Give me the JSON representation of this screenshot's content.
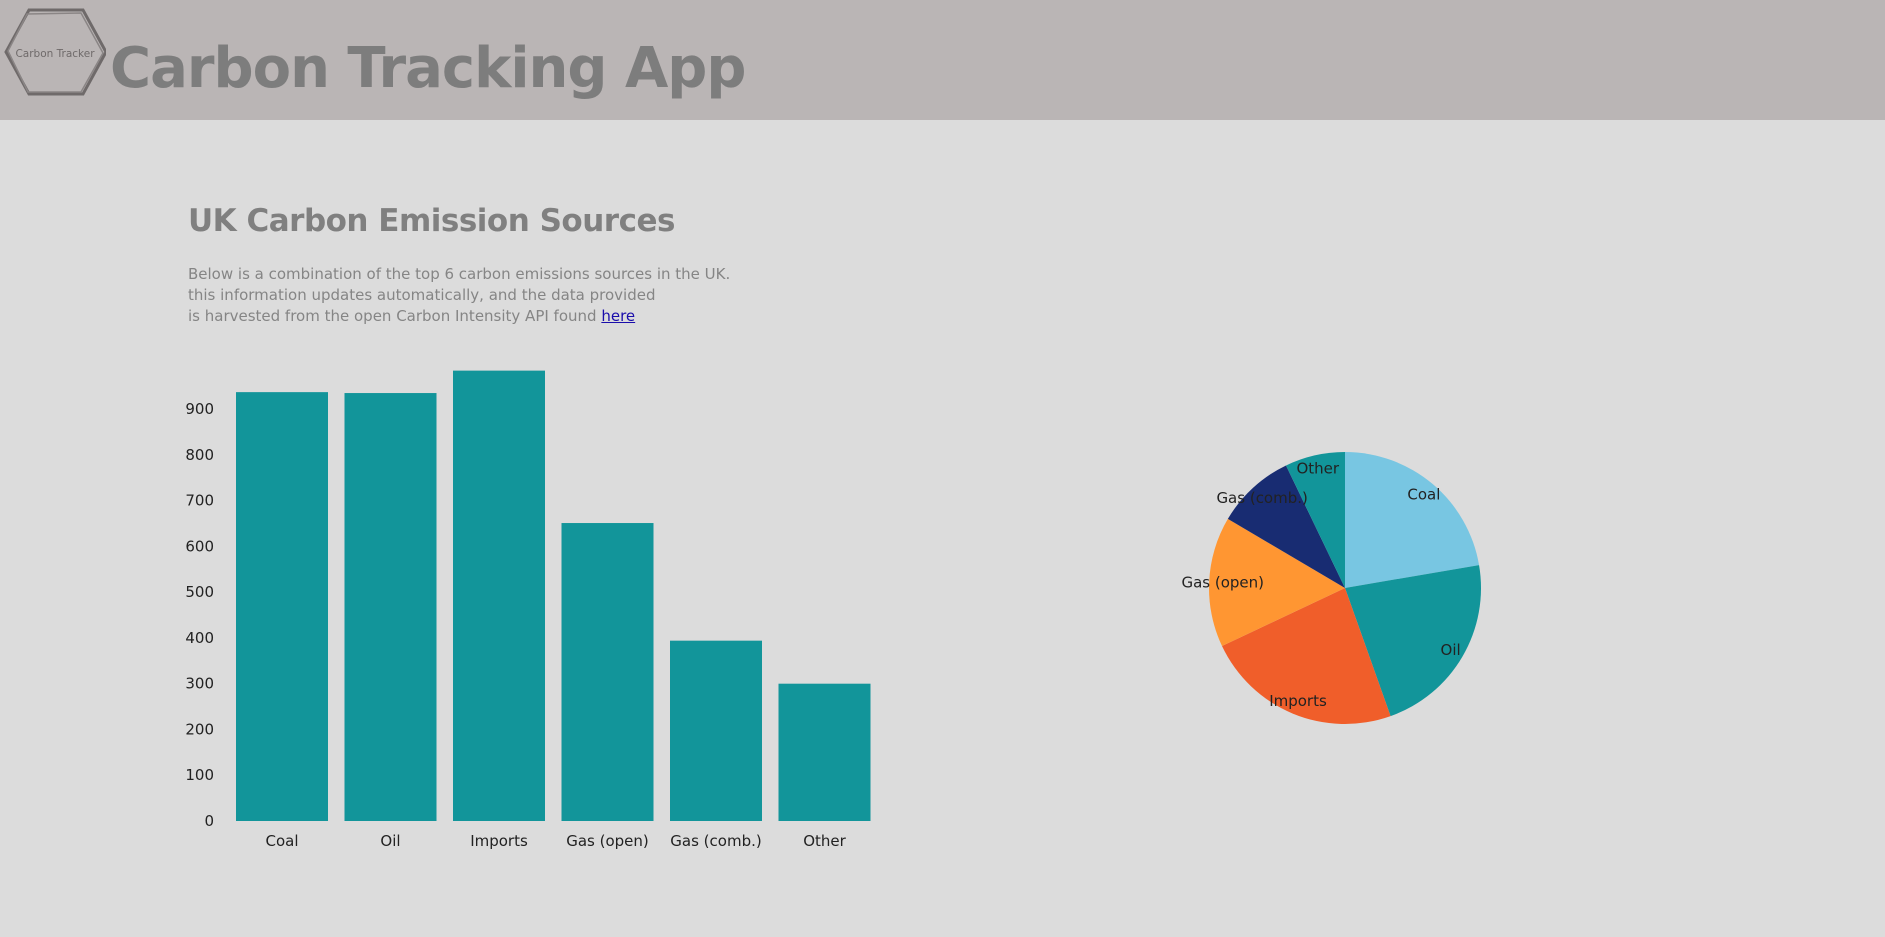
{
  "header": {
    "logo_text": "Carbon Tracker",
    "title": "Carbon Tracking App",
    "background": "#bab5b5"
  },
  "main": {
    "heading": "UK Carbon Emission Sources",
    "description_lines": [
      "Below is a combination of the top 6 carbon emissions sources in the UK.",
      "this information updates automatically, and the data provided",
      "is harvested from the open Carbon Intensity API found"
    ],
    "link_text": "here"
  },
  "chart_data": [
    {
      "type": "bar",
      "title": "",
      "xlabel": "",
      "ylabel": "",
      "categories": [
        "Coal",
        "Oil",
        "Imports",
        "Gas (open)",
        "Gas (comb.)",
        "Other"
      ],
      "values": [
        937,
        935,
        984,
        651,
        394,
        300
      ],
      "yticks": [
        0,
        100,
        200,
        300,
        400,
        500,
        600,
        700,
        800,
        900
      ],
      "ylim": [
        0,
        1000
      ],
      "grid": false,
      "bar_color": "#12959a"
    },
    {
      "type": "pie",
      "title": "",
      "labels": [
        "Coal",
        "Oil",
        "Imports",
        "Gas (open)",
        "Gas (comb.)",
        "Other"
      ],
      "values": [
        937,
        935,
        984,
        651,
        394,
        300
      ],
      "colors": [
        "#78c6e2",
        "#12959a",
        "#f05e2a",
        "#ff9632",
        "#182c72",
        "#12959a"
      ]
    }
  ]
}
